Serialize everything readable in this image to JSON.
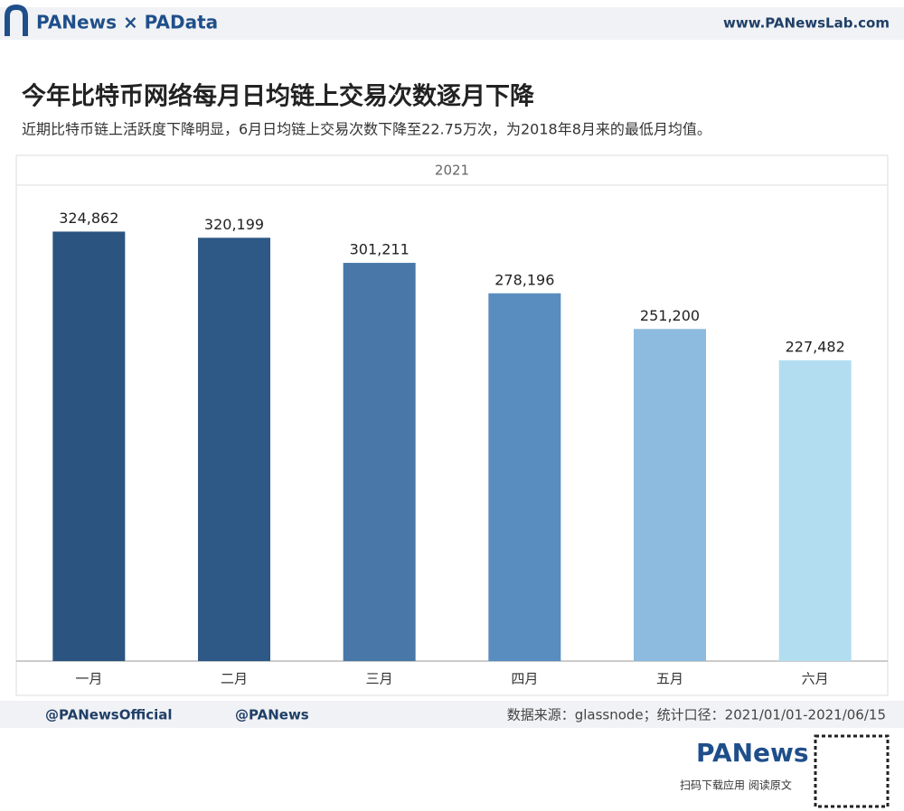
{
  "header": {
    "brand": "PANews × PAData",
    "site": "www.PANewsLab.com"
  },
  "chart_data": {
    "type": "bar",
    "title": "今年比特币网络每月日均链上交易次数逐月下降",
    "subtitle": "近期比特币链上活跃度下降明显，6月日均链上交易次数下降至22.75万次，为2018年8月来的最低月均值。",
    "panel_title": "2021",
    "categories": [
      "一月",
      "二月",
      "三月",
      "四月",
      "五月",
      "六月"
    ],
    "values": [
      324862,
      320199,
      301211,
      278196,
      251200,
      227482
    ],
    "value_labels": [
      "324,862",
      "320,199",
      "301,211",
      "278,196",
      "251,200",
      "227,482"
    ],
    "colors": [
      "#2b5580",
      "#2e5986",
      "#4877a8",
      "#5a8dbf",
      "#8cbbdf",
      "#b2ddf1"
    ],
    "ylim": [
      0,
      360000
    ]
  },
  "footer": {
    "twitter": "@PANewsOfficial",
    "weibo": "@PANews",
    "source": "数据来源：glassnode；统计口径：2021/01/01-2021/06/15",
    "logo": "PANews",
    "cta": "扫码下载应用  阅读原文"
  }
}
